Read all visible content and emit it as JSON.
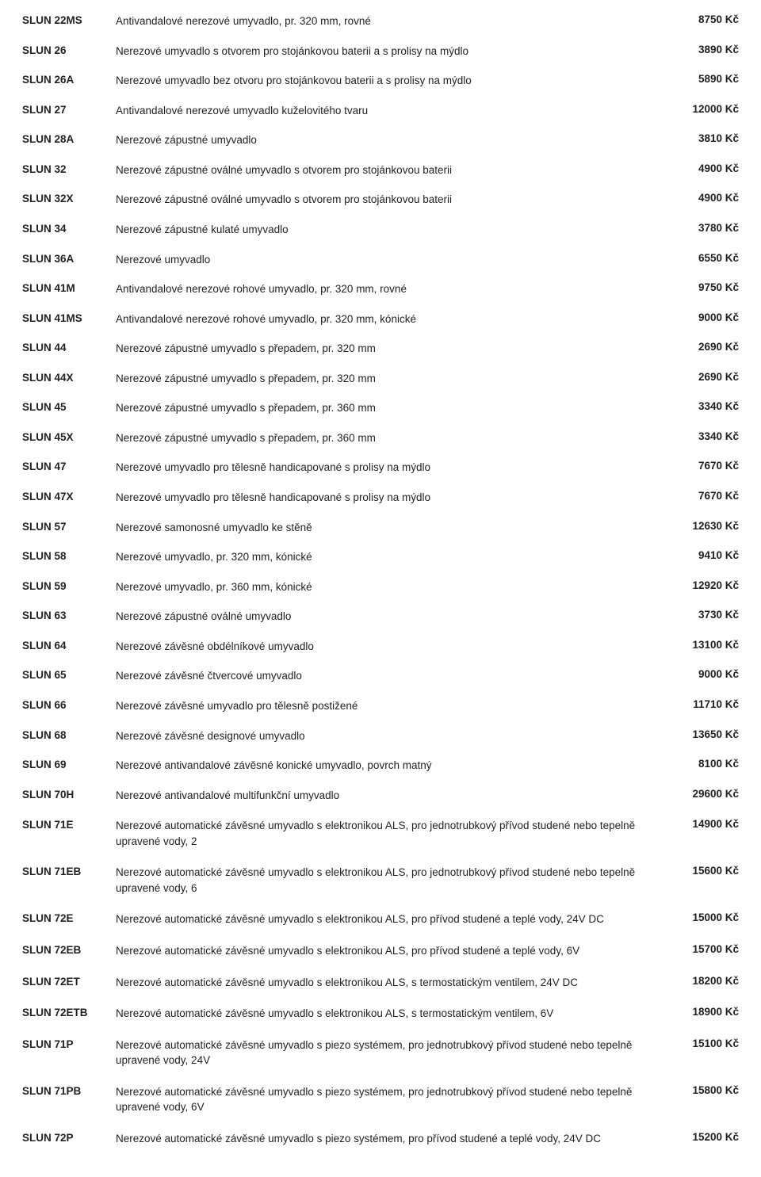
{
  "currency_suffix": "Kč",
  "rows": [
    {
      "code": "SLUN 22MS",
      "desc": "Antivandalové nerezové umyvadlo, pr. 320 mm, rovné",
      "price": "8750 Kč"
    },
    {
      "code": "SLUN 26",
      "desc": "Nerezové umyvadlo s otvorem pro stojánkovou baterii a s prolisy na mýdlo",
      "price": "3890 Kč"
    },
    {
      "code": "SLUN 26A",
      "desc": "Nerezové umyvadlo bez otvoru pro stojánkovou baterii a s prolisy na mýdlo",
      "price": "5890 Kč"
    },
    {
      "code": "SLUN 27",
      "desc": "Antivandalové nerezové umyvadlo kuželovitého tvaru",
      "price": "12000 Kč"
    },
    {
      "code": "SLUN 28A",
      "desc": "Nerezové zápustné umyvadlo",
      "price": "3810 Kč"
    },
    {
      "code": "SLUN 32",
      "desc": "Nerezové zápustné oválné umyvadlo s otvorem pro stojánkovou baterii",
      "price": "4900 Kč"
    },
    {
      "code": "SLUN 32X",
      "desc": "Nerezové zápustné oválné umyvadlo s otvorem pro stojánkovou baterii",
      "price": "4900 Kč"
    },
    {
      "code": "SLUN 34",
      "desc": "Nerezové zápustné kulaté umyvadlo",
      "price": "3780 Kč"
    },
    {
      "code": "SLUN 36A",
      "desc": "Nerezové umyvadlo",
      "price": "6550 Kč"
    },
    {
      "code": "SLUN 41M",
      "desc": "Antivandalové nerezové rohové umyvadlo, pr. 320 mm, rovné",
      "price": "9750 Kč"
    },
    {
      "code": "SLUN 41MS",
      "desc": "Antivandalové nerezové rohové umyvadlo, pr. 320 mm, kónické",
      "price": "9000 Kč"
    },
    {
      "code": "SLUN 44",
      "desc": "Nerezové zápustné umyvadlo s přepadem, pr. 320 mm",
      "price": "2690 Kč"
    },
    {
      "code": "SLUN 44X",
      "desc": "Nerezové zápustné umyvadlo s přepadem, pr. 320 mm",
      "price": "2690 Kč"
    },
    {
      "code": "SLUN 45",
      "desc": "Nerezové zápustné umyvadlo s přepadem, pr. 360 mm",
      "price": "3340 Kč"
    },
    {
      "code": "SLUN 45X",
      "desc": "Nerezové zápustné umyvadlo s přepadem, pr. 360 mm",
      "price": "3340 Kč"
    },
    {
      "code": "SLUN 47",
      "desc": "Nerezové umyvadlo pro tělesně handicapované s prolisy na mýdlo",
      "price": "7670 Kč"
    },
    {
      "code": "SLUN 47X",
      "desc": "Nerezové umyvadlo pro tělesně handicapované s prolisy na mýdlo",
      "price": "7670 Kč"
    },
    {
      "code": "SLUN 57",
      "desc": "Nerezové samonosné umyvadlo ke stěně",
      "price": "12630 Kč"
    },
    {
      "code": "SLUN 58",
      "desc": "Nerezové umyvadlo, pr. 320 mm, kónické",
      "price": "9410 Kč"
    },
    {
      "code": "SLUN 59",
      "desc": "Nerezové umyvadlo, pr. 360 mm, kónické",
      "price": "12920 Kč"
    },
    {
      "code": "SLUN 63",
      "desc": "Nerezové zápustné oválné umyvadlo",
      "price": "3730 Kč"
    },
    {
      "code": "SLUN 64",
      "desc": "Nerezové závěsné obdélníkové umyvadlo",
      "price": "13100 Kč"
    },
    {
      "code": "SLUN 65",
      "desc": "Nerezové závěsné čtvercové umyvadlo",
      "price": "9000 Kč"
    },
    {
      "code": "SLUN 66",
      "desc": "Nerezové závěsné umyvadlo pro tělesně postižené",
      "price": "11710 Kč"
    },
    {
      "code": "SLUN 68",
      "desc": "Nerezové závěsné designové umyvadlo",
      "price": "13650 Kč"
    },
    {
      "code": "SLUN 69",
      "desc": "Nerezové antivandalové závěsné konické umyvadlo, povrch matný",
      "price": "8100 Kč"
    },
    {
      "code": "SLUN 70H",
      "desc": "Nerezové antivandalové multifunkční umyvadlo",
      "price": "29600 Kč"
    },
    {
      "code": "SLUN 71E",
      "desc": "Nerezové automatické závěsné umyvadlo s elektronikou ALS, pro jednotrubkový přívod studené nebo tepelně upravené vody, 2",
      "price": "14900 Kč",
      "multiline": true
    },
    {
      "code": "SLUN 71EB",
      "desc": "Nerezové automatické závěsné umyvadlo s elektronikou ALS, pro jednotrubkový přívod studené nebo tepelně upravené vody, 6",
      "price": "15600 Kč",
      "multiline": true
    },
    {
      "code": "SLUN 72E",
      "desc": "Nerezové automatické závěsné umyvadlo s elektronikou ALS, pro přívod studené a teplé vody, 24V DC",
      "price": "15000 Kč",
      "multiline": true
    },
    {
      "code": "SLUN 72EB",
      "desc": "Nerezové automatické závěsné umyvadlo s elektronikou ALS, pro přívod studené a teplé vody, 6V",
      "price": "15700 Kč",
      "multiline": true
    },
    {
      "code": "SLUN 72ET",
      "desc": "Nerezové automatické závěsné umyvadlo s elektronikou ALS, s termostatickým ventilem, 24V DC",
      "price": "18200 Kč",
      "multiline": true
    },
    {
      "code": "SLUN 72ETB",
      "desc": "Nerezové automatické závěsné umyvadlo s elektronikou ALS, s termostatickým ventilem, 6V",
      "price": "18900 Kč",
      "multiline": true
    },
    {
      "code": "SLUN 71P",
      "desc": "Nerezové automatické závěsné umyvadlo s piezo systémem, pro jednotrubkový přívod studené nebo tepelně upravené vody, 24V",
      "price": "15100 Kč",
      "multiline": true
    },
    {
      "code": "SLUN 71PB",
      "desc": "Nerezové automatické závěsné umyvadlo s piezo systémem, pro jednotrubkový přívod studené nebo tepelně upravené vody, 6V",
      "price": "15800 Kč",
      "multiline": true
    },
    {
      "code": "SLUN 72P",
      "desc": "Nerezové automatické závěsné umyvadlo s piezo systémem, pro přívod studené a teplé vody, 24V DC",
      "price": "15200 Kč",
      "multiline": true
    }
  ]
}
